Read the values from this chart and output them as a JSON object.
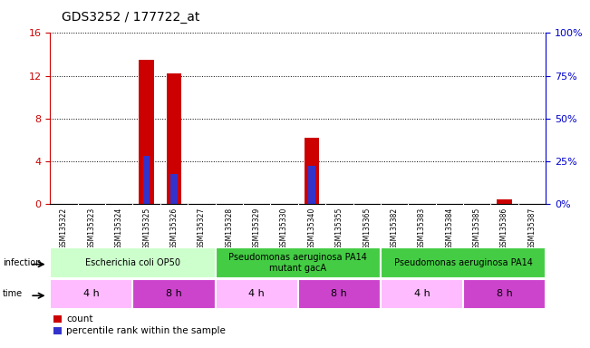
{
  "title": "GDS3252 / 177722_at",
  "samples": [
    "GSM135322",
    "GSM135323",
    "GSM135324",
    "GSM135325",
    "GSM135326",
    "GSM135327",
    "GSM135328",
    "GSM135329",
    "GSM135330",
    "GSM135340",
    "GSM135355",
    "GSM135365",
    "GSM135382",
    "GSM135383",
    "GSM135384",
    "GSM135385",
    "GSM135386",
    "GSM135387"
  ],
  "count_values": [
    0,
    0,
    0,
    13.5,
    12.2,
    0,
    0,
    0,
    0,
    6.2,
    0,
    0,
    0,
    0,
    0,
    0,
    0.4,
    0
  ],
  "percentile_values": [
    0,
    0,
    0,
    4.5,
    2.8,
    0,
    0,
    0,
    0,
    3.5,
    0,
    0,
    0,
    0,
    0,
    0,
    0,
    0
  ],
  "ylim_left": [
    0,
    16
  ],
  "ylim_right": [
    0,
    100
  ],
  "yticks_left": [
    0,
    4,
    8,
    12,
    16
  ],
  "yticks_right": [
    0,
    25,
    50,
    75,
    100
  ],
  "ytick_labels_right": [
    "0%",
    "25%",
    "50%",
    "75%",
    "100%"
  ],
  "bar_color_count": "#cc0000",
  "bar_color_percentile": "#3333cc",
  "infection_groups": [
    {
      "label": "Escherichia coli OP50",
      "start": 0,
      "end": 6,
      "color": "#ccffcc"
    },
    {
      "label": "Pseudomonas aeruginosa PA14\nmutant gacA",
      "start": 6,
      "end": 12,
      "color": "#44cc44"
    },
    {
      "label": "Pseudomonas aeruginosa PA14",
      "start": 12,
      "end": 18,
      "color": "#44cc44"
    }
  ],
  "time_groups": [
    {
      "label": "4 h",
      "start": 0,
      "end": 3,
      "color": "#ffbbff"
    },
    {
      "label": "8 h",
      "start": 3,
      "end": 6,
      "color": "#cc44cc"
    },
    {
      "label": "4 h",
      "start": 6,
      "end": 9,
      "color": "#ffbbff"
    },
    {
      "label": "8 h",
      "start": 9,
      "end": 12,
      "color": "#cc44cc"
    },
    {
      "label": "4 h",
      "start": 12,
      "end": 15,
      "color": "#ffbbff"
    },
    {
      "label": "8 h",
      "start": 15,
      "end": 18,
      "color": "#cc44cc"
    }
  ],
  "infection_label": "infection",
  "time_label": "time",
  "legend_count_label": "count",
  "legend_percentile_label": "percentile rank within the sample",
  "bar_width": 0.55,
  "grid_color": "#000000",
  "axis_color_left": "#cc0000",
  "axis_color_right": "#0000cc",
  "bg_color": "#ffffff",
  "sample_bg_color": "#cccccc",
  "title_fontsize": 10,
  "ytick_fontsize": 8,
  "sample_fontsize": 5.5,
  "infection_fontsize": 7,
  "time_fontsize": 8,
  "legend_fontsize": 7.5
}
